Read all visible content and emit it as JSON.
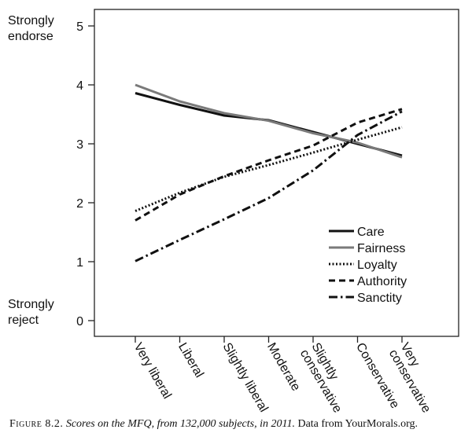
{
  "chart_data": {
    "type": "line",
    "title": "",
    "xlabel": "",
    "ylabel": "",
    "ylim": [
      0,
      5
    ],
    "yticks": [
      "0",
      "1",
      "2",
      "3",
      "4",
      "5"
    ],
    "y_top_label": [
      "Strongly",
      "endorse"
    ],
    "y_bottom_label": [
      "Strongly",
      "reject"
    ],
    "categories": [
      [
        "Very liberal"
      ],
      [
        "Liberal"
      ],
      [
        "Slightly liberal"
      ],
      [
        "Moderate"
      ],
      [
        "Slightly",
        "conservative"
      ],
      [
        "Conservative"
      ],
      [
        "Very",
        "conservative"
      ]
    ],
    "series": [
      {
        "name": "Care",
        "values": [
          3.86,
          3.66,
          3.48,
          3.4,
          3.2,
          3.0,
          2.8
        ],
        "color": "#111111",
        "dash": "solid"
      },
      {
        "name": "Fairness",
        "values": [
          4.0,
          3.72,
          3.52,
          3.39,
          3.18,
          3.02,
          2.77
        ],
        "color": "#7a7a7a",
        "dash": "solid"
      },
      {
        "name": "Loyalty",
        "values": [
          1.86,
          2.17,
          2.44,
          2.64,
          2.85,
          3.07,
          3.28
        ],
        "color": "#111111",
        "dash": "dotted"
      },
      {
        "name": "Authority",
        "values": [
          1.7,
          2.14,
          2.45,
          2.72,
          2.97,
          3.36,
          3.59
        ],
        "color": "#111111",
        "dash": "dashed"
      },
      {
        "name": "Sanctity",
        "values": [
          1.01,
          1.37,
          1.72,
          2.08,
          2.55,
          3.15,
          3.55
        ],
        "color": "#111111",
        "dash": "dashdot"
      }
    ],
    "legend_position": "bottom-right",
    "grid": false
  },
  "caption": {
    "figure": "Figure 8.2.",
    "italic": "Scores on the MFQ, from 132,000 subjects, in 2011.",
    "plain": "Data from YourMorals.org."
  }
}
